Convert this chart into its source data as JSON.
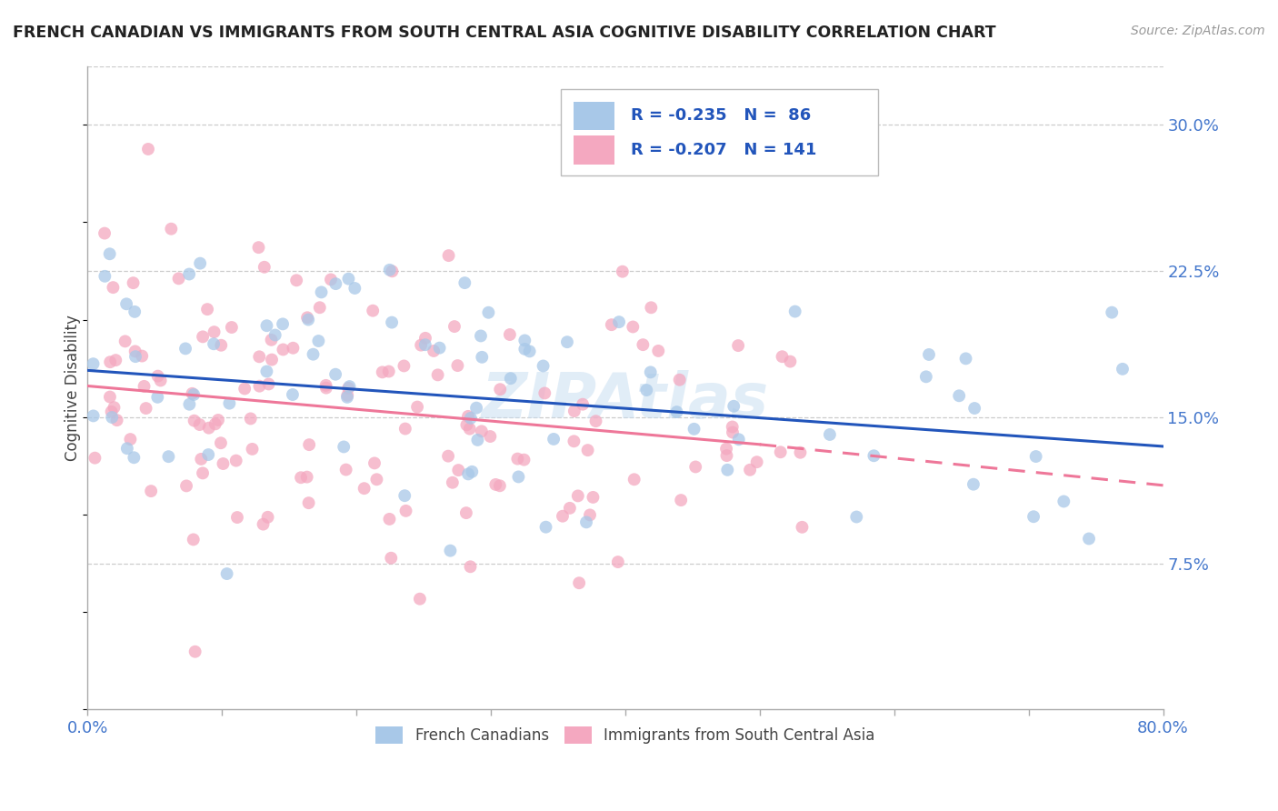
{
  "title": "FRENCH CANADIAN VS IMMIGRANTS FROM SOUTH CENTRAL ASIA COGNITIVE DISABILITY CORRELATION CHART",
  "source": "Source: ZipAtlas.com",
  "ylabel": "Cognitive Disability",
  "yticks": [
    "7.5%",
    "15.0%",
    "22.5%",
    "30.0%"
  ],
  "ytick_vals": [
    0.075,
    0.15,
    0.225,
    0.3
  ],
  "xlim": [
    0.0,
    0.8
  ],
  "ylim": [
    0.0,
    0.33
  ],
  "blue_color": "#A8C8E8",
  "pink_color": "#F4A8C0",
  "blue_line_color": "#2255BB",
  "pink_line_color": "#EE7799",
  "legend_label_blue": "French Canadians",
  "legend_label_pink": "Immigrants from South Central Asia",
  "watermark": "ZIPAtlas",
  "blue_trend_y_start": 0.174,
  "blue_trend_y_end": 0.135,
  "pink_trend_y_start": 0.166,
  "pink_trend_solid_end_x": 0.5,
  "pink_trend_solid_end_y": 0.136,
  "pink_trend_dash_end_x": 0.8,
  "pink_trend_dash_end_y": 0.115,
  "grid_color": "#CCCCCC",
  "title_color": "#222222",
  "tick_label_color": "#4477CC",
  "scatter_size": 100
}
